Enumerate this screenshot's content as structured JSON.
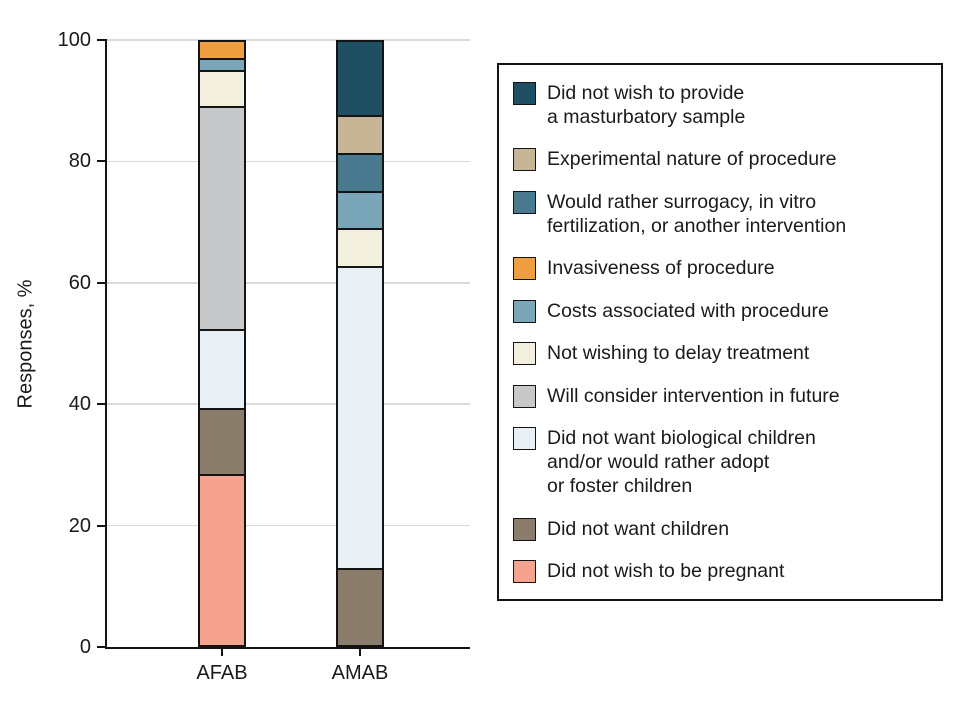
{
  "chart_data": {
    "type": "bar",
    "variant": "stacked-percent",
    "title": "",
    "xlabel": "",
    "ylabel": "Responses, %",
    "ylim": [
      0,
      100
    ],
    "yticks": [
      0,
      20,
      40,
      60,
      80,
      100
    ],
    "grid": true,
    "legend_position": "right",
    "categories": [
      "AFAB",
      "AMAB"
    ],
    "series": [
      {
        "name": "Did not wish to be pregnant",
        "legend_label": "Did not wish to be pregnant",
        "color": "#F5A28E",
        "values": [
          28,
          0
        ]
      },
      {
        "name": "Did not want children",
        "legend_label": "Did not want children",
        "color": "#8B7D6B",
        "values": [
          11,
          12.5
        ]
      },
      {
        "name": "Did not want biological children and/or would rather adopt or foster children",
        "legend_label": "Did not want biological children\nand/or would rather adopt\nor foster children",
        "color": "#E9F0F5",
        "values": [
          13,
          50
        ]
      },
      {
        "name": "Will consider intervention in future",
        "legend_label": "Will consider intervention in future",
        "color": "#C6C8CA",
        "values": [
          37,
          0
        ]
      },
      {
        "name": "Not wishing to delay treatment",
        "legend_label": "Not wishing to delay treatment",
        "color": "#F2EFDE",
        "values": [
          6,
          6.25
        ]
      },
      {
        "name": "Costs associated with procedure",
        "legend_label": "Costs associated with procedure",
        "color": "#7BA6BA",
        "values": [
          2,
          6.25
        ]
      },
      {
        "name": "Invasiveness of procedure",
        "legend_label": "Invasiveness of procedure",
        "color": "#EF9F40",
        "values": [
          3,
          0
        ]
      },
      {
        "name": "Would rather surrogacy, in vitro fertilization, or another intervention",
        "legend_label": "Would rather surrogacy, in vitro\nfertilization, or another intervention",
        "color": "#49798F",
        "values": [
          0,
          6.25
        ]
      },
      {
        "name": "Experimental nature of procedure",
        "legend_label": "Experimental nature of procedure",
        "color": "#C7B696",
        "values": [
          0,
          6.25
        ]
      },
      {
        "name": "Did not wish to provide a masturbatory sample",
        "legend_label": "Did not wish to provide\na masturbatory sample",
        "color": "#1E4F63",
        "values": [
          0,
          12.5
        ]
      }
    ]
  },
  "colors": {
    "axis": "#141414",
    "gridline": "#dadada",
    "background": "#ffffff"
  }
}
